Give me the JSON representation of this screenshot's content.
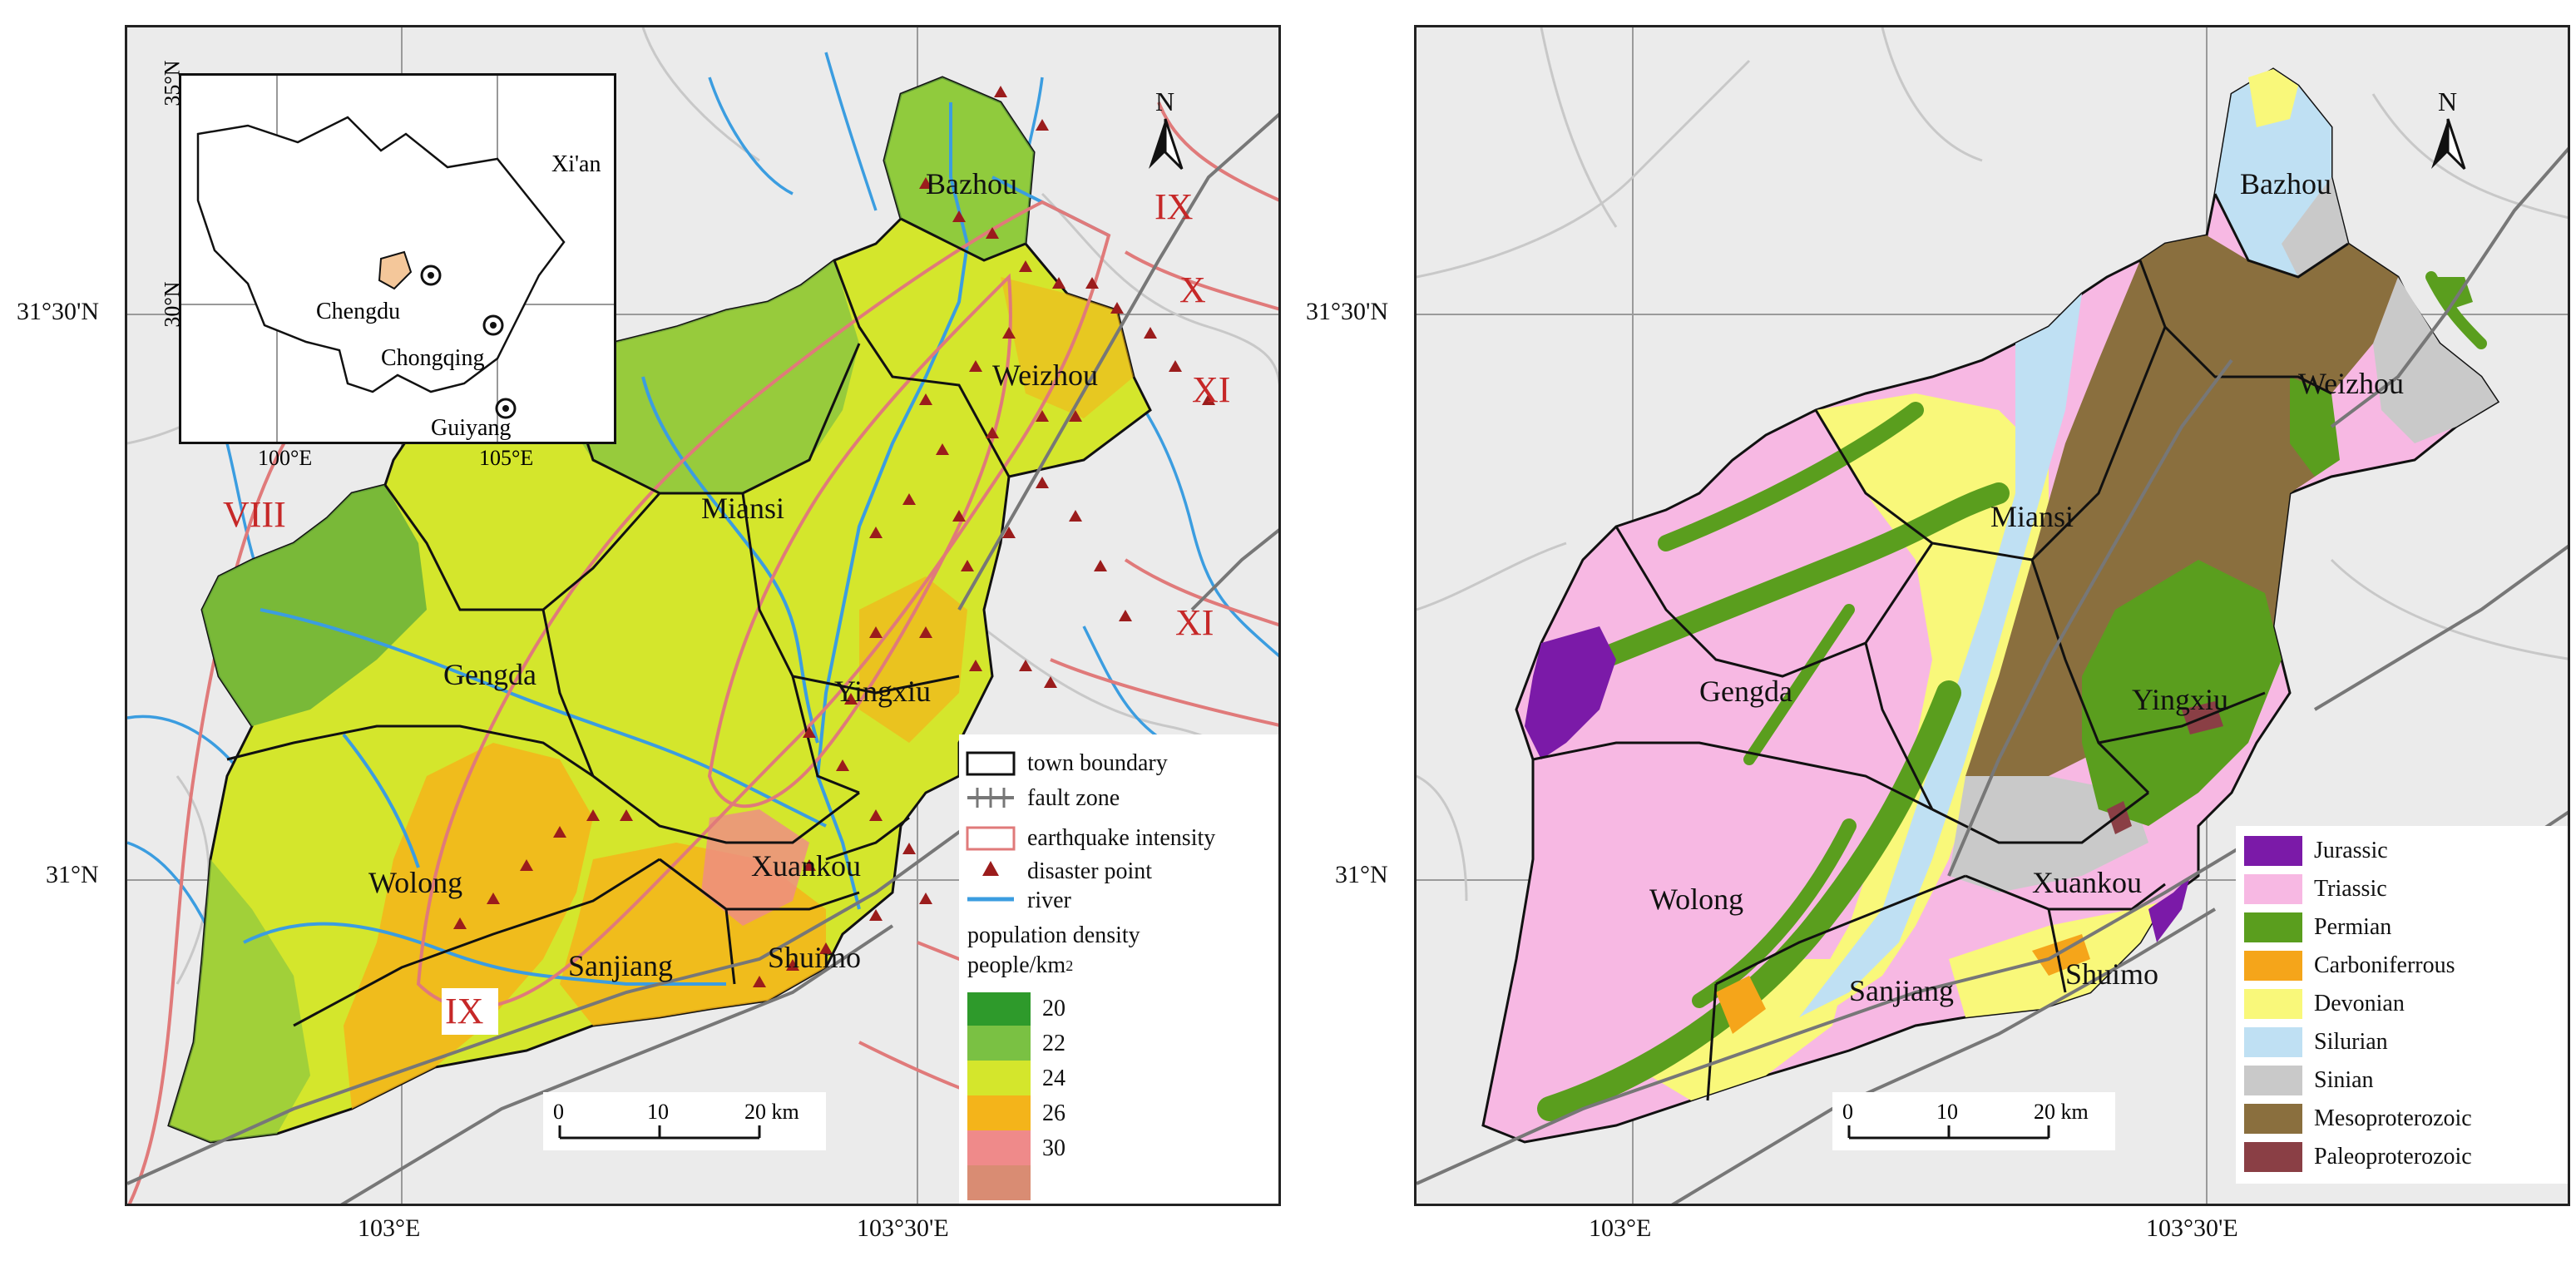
{
  "left_map": {
    "inset": {
      "lat_label": "35°N",
      "lat_label2": "30°N",
      "lon_labels": [
        "100°E",
        "105°E"
      ],
      "cities": [
        "Xi'an",
        "Chengdu",
        "Chongqing",
        "Guiyang"
      ]
    },
    "north": "N",
    "towns": [
      "Bazhou",
      "Weizhou",
      "Miansi",
      "Gengda",
      "Yingxiu",
      "Wolong",
      "Sanjiang",
      "Xuankou",
      "Shuimo"
    ],
    "intensity_labels": [
      "IX",
      "X",
      "XI",
      "VIII",
      "XI",
      "IX"
    ],
    "lat_labels": [
      "31°30'N",
      "31°N"
    ],
    "lon_labels": [
      "103°E",
      "103°30'E"
    ],
    "scale": {
      "labels": [
        "0",
        "10",
        "20 km"
      ]
    },
    "legend": {
      "items": [
        "town boundary",
        "fault zone",
        "earthquake intensity",
        "disaster point",
        "river"
      ],
      "density_title": "population density",
      "density_unit": "people/km",
      "density_unit_sup": "2",
      "classes": [
        {
          "label": "20",
          "color": "#2e9a2b"
        },
        {
          "label": "22",
          "color": "#7ac143"
        },
        {
          "label": "24",
          "color": "#d4e62c"
        },
        {
          "label": "26",
          "color": "#f4b41a"
        },
        {
          "label": "30",
          "color": "#ef8a8a"
        }
      ],
      "last_color": "#d98c73"
    }
  },
  "right_map": {
    "north": "N",
    "towns": [
      "Bazhou",
      "Weizhou",
      "Miansi",
      "Gengda",
      "Yingxiu",
      "Wolong",
      "Sanjiang",
      "Xuankou",
      "Shuimo"
    ],
    "lat_labels": [
      "31°30'N",
      "31°N"
    ],
    "lon_labels": [
      "103°E",
      "103°30'E"
    ],
    "scale": {
      "labels": [
        "0",
        "10",
        "20 km"
      ]
    },
    "legend": [
      {
        "label": "Jurassic",
        "color": "#7b1aa8"
      },
      {
        "label": "Triassic",
        "color": "#f7b8e3"
      },
      {
        "label": "Permian",
        "color": "#5a9e1e"
      },
      {
        "label": "Carboniferrous",
        "color": "#f5a51a"
      },
      {
        "label": "Devonian",
        "color": "#f9f87a"
      },
      {
        "label": "Silurian",
        "color": "#bfe0f3"
      },
      {
        "label": "Sinian",
        "color": "#c9c9c9"
      },
      {
        "label": "Mesoproterozoic",
        "color": "#8a6f3e"
      },
      {
        "label": "Paleoproterozoic",
        "color": "#8a3f45"
      }
    ]
  }
}
